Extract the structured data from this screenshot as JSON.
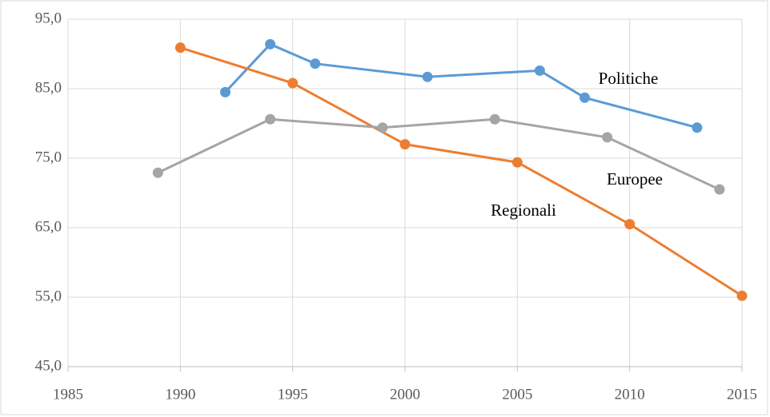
{
  "chart_data": {
    "type": "line",
    "xlim": [
      1985,
      2015
    ],
    "xticks": [
      1985,
      1990,
      1995,
      2000,
      2005,
      2010,
      2015
    ],
    "ylim": [
      45,
      95
    ],
    "yticks": [
      {
        "value": 45,
        "label": "45,0"
      },
      {
        "value": 55,
        "label": "55,0"
      },
      {
        "value": 65,
        "label": "65,0"
      },
      {
        "value": 75,
        "label": "75,0"
      },
      {
        "value": 85,
        "label": "85,0"
      },
      {
        "value": 95,
        "label": "95,0"
      }
    ],
    "grid": true,
    "series": [
      {
        "name": "Politiche",
        "color": "#5b9bd5",
        "x": [
          1992,
          1994,
          1996,
          2001,
          2006,
          2008,
          2013
        ],
        "values": [
          84.5,
          91.4,
          88.6,
          86.7,
          87.6,
          83.7,
          79.4
        ]
      },
      {
        "name": "Regionali",
        "color": "#ed7d31",
        "x": [
          1990,
          1995,
          2000,
          2005,
          2010,
          2015
        ],
        "values": [
          90.9,
          85.8,
          77.0,
          74.4,
          65.5,
          55.2
        ]
      },
      {
        "name": "Europee",
        "color": "#a5a5a5",
        "x": [
          1989,
          1994,
          1999,
          2004,
          2009,
          2014
        ],
        "values": [
          72.9,
          80.6,
          79.4,
          80.6,
          78.0,
          70.5
        ]
      }
    ]
  }
}
